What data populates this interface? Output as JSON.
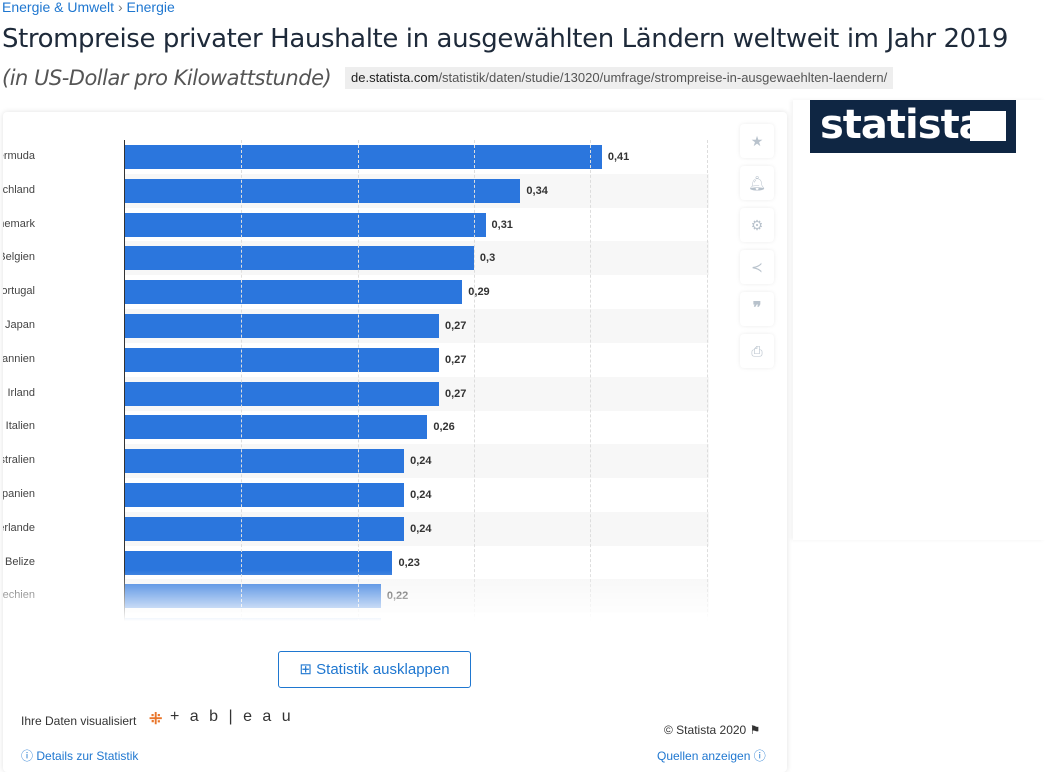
{
  "breadcrumb": {
    "item1": "Energie & Umwelt",
    "sep": "›",
    "item2": "Energie"
  },
  "header": {
    "title": "Strompreise privater Haushalte in ausgewählten Ländern weltweit im Jahr 2019",
    "subtitle": "(in US-Dollar pro Kilowattstunde)",
    "url_domain": "de.statista.com",
    "url_path": "/statistik/daten/studie/13020/umfrage/strompreise-in-ausgewaehlten-laendern/"
  },
  "logo": "statista",
  "expand_button": "Statistik ausklappen",
  "footer": {
    "visualized": "Ihre Daten visualisiert",
    "tableau": "+ a b | e a u",
    "copyright": "© Statista 2020",
    "details": "Details zur Statistik",
    "sources": "Quellen anzeigen"
  },
  "side_icons": [
    "star-icon",
    "bell-icon",
    "gear-icon",
    "share-icon",
    "quote-icon",
    "print-icon"
  ],
  "colors": {
    "bar": "#2b76dd",
    "logo_bg": "#0f2643",
    "link": "#1f77d0"
  },
  "chart_data": {
    "type": "bar",
    "orientation": "horizontal",
    "categories": [
      "Bermuda",
      "Deutschland",
      "Dänemark",
      "Belgien",
      "Portugal",
      "Japan",
      "Großbritannien",
      "Irland",
      "Italien",
      "Australien",
      "Spanien",
      "Niederlande",
      "Belize",
      "Tschechien"
    ],
    "values": [
      0.41,
      0.34,
      0.31,
      0.3,
      0.29,
      0.27,
      0.27,
      0.27,
      0.26,
      0.24,
      0.24,
      0.24,
      0.23,
      0.22
    ],
    "value_labels": [
      "0,41",
      "0,34",
      "0,31",
      "0,3",
      "0,29",
      "0,27",
      "0,27",
      "0,27",
      "0,26",
      "0,24",
      "0,24",
      "0,24",
      "0,23",
      "0,22"
    ],
    "xlim": [
      0,
      0.5
    ],
    "grid": true,
    "truncated_more_rows": true
  }
}
